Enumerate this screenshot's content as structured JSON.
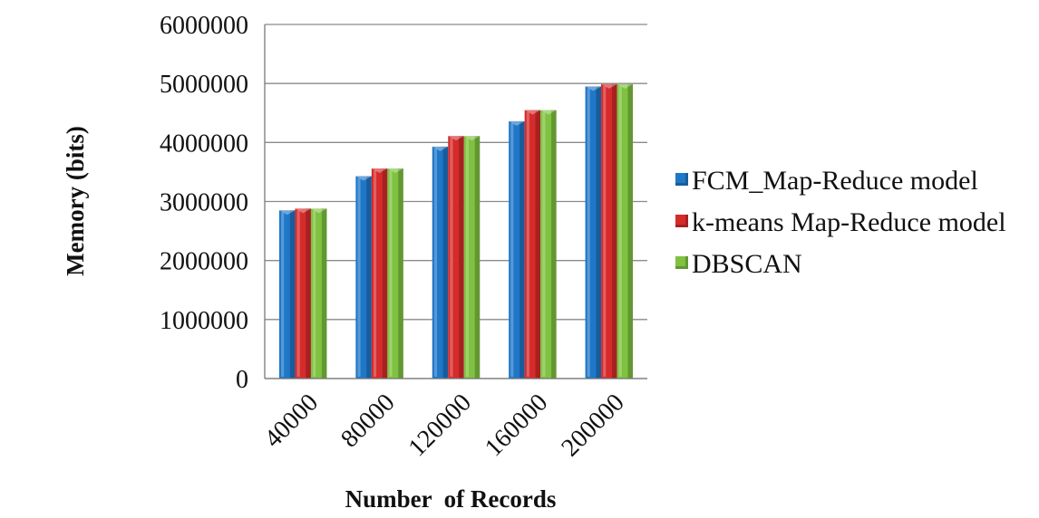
{
  "chart_data": {
    "type": "bar",
    "categories": [
      "40000",
      "80000",
      "120000",
      "160000",
      "200000"
    ],
    "series": [
      {
        "name": "FCM_Map-Reduce model",
        "values": [
          2850000,
          3430000,
          3930000,
          4360000,
          4950000
        ],
        "color": "#1f77c8"
      },
      {
        "name": "k-means Map-Reduce model",
        "values": [
          2880000,
          3560000,
          4110000,
          4550000,
          4990000
        ],
        "color": "#d62b2b"
      },
      {
        "name": "DBSCAN",
        "values": [
          2880000,
          3560000,
          4110000,
          4550000,
          4990000
        ],
        "color": "#7fc241"
      }
    ],
    "xlabel": "Number  of Records",
    "ylabel": "Memory (bits)",
    "ylim": [
      0,
      6000000
    ],
    "yticks": [
      "0",
      "1000000",
      "2000000",
      "3000000",
      "4000000",
      "5000000",
      "6000000"
    ],
    "grid": true,
    "legend_position": "right"
  }
}
